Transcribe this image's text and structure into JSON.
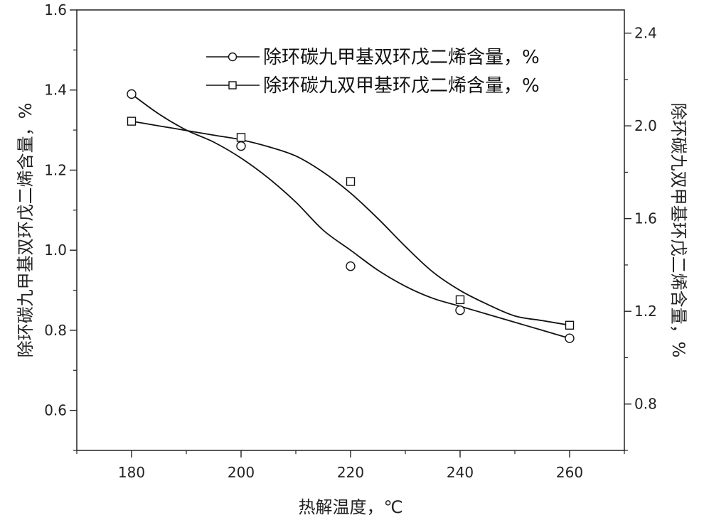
{
  "chart_data": {
    "type": "line",
    "title": "",
    "xlabel": "热解温度，℃",
    "ylabel_left": "除环碳九甲基双环戊二烯含量，%",
    "ylabel_right": "除环碳九双甲基环戊二烯含量，%",
    "xlim": [
      170,
      270
    ],
    "ylim_left": [
      0.5,
      1.6
    ],
    "ylim_right": [
      0.6,
      2.5
    ],
    "x_ticks": [
      "180",
      "200",
      "220",
      "240",
      "260"
    ],
    "y_left_ticks": [
      "0.6",
      "0.8",
      "1.0",
      "1.2",
      "1.4",
      "1.6"
    ],
    "y_right_ticks": [
      "0.8",
      "1.2",
      "1.6",
      "2.0",
      "2.4"
    ],
    "grid": false,
    "legend_position": "top-right",
    "series": [
      {
        "name": "除环碳九甲基双环戊二烯含量，%",
        "axis": "left",
        "marker": "circle",
        "x": [
          180,
          200,
          220,
          240,
          260
        ],
        "y": [
          1.39,
          1.26,
          0.96,
          0.85,
          0.78
        ],
        "curve_x": [
          180,
          185,
          190,
          195,
          200,
          205,
          210,
          215,
          220,
          225,
          230,
          235,
          240,
          245,
          250,
          255,
          260
        ],
        "curve_y": [
          1.39,
          1.34,
          1.3,
          1.27,
          1.23,
          1.18,
          1.12,
          1.05,
          1.0,
          0.95,
          0.91,
          0.88,
          0.86,
          0.84,
          0.82,
          0.8,
          0.78
        ]
      },
      {
        "name": "除环碳九双甲基环戊二烯含量，%",
        "axis": "right",
        "marker": "square",
        "x": [
          180,
          200,
          220,
          240,
          260
        ],
        "y": [
          2.02,
          1.95,
          1.76,
          1.25,
          1.14
        ],
        "curve_x": [
          180,
          185,
          190,
          195,
          200,
          205,
          210,
          215,
          220,
          225,
          230,
          235,
          240,
          245,
          250,
          255,
          260
        ],
        "curve_y": [
          2.02,
          2.0,
          1.98,
          1.96,
          1.94,
          1.91,
          1.87,
          1.8,
          1.71,
          1.6,
          1.48,
          1.37,
          1.29,
          1.23,
          1.18,
          1.16,
          1.14
        ]
      }
    ]
  }
}
